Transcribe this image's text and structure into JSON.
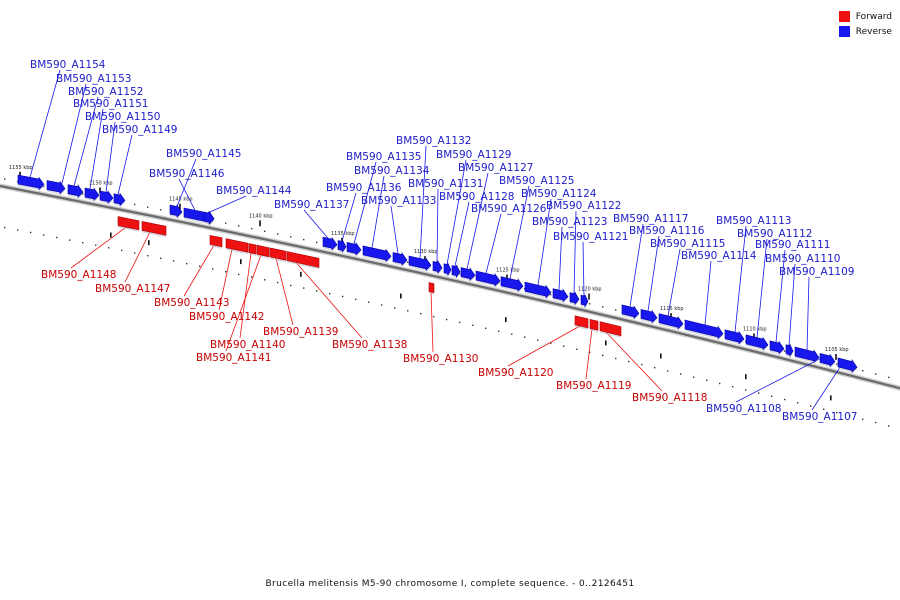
{
  "legend": [
    {
      "label": "Forward",
      "color": "#ee1111"
    },
    {
      "label": "Reverse",
      "color": "#1717ee"
    }
  ],
  "caption": "Brucella melitensis M5-90 chromosome I, complete sequence. - 0..2126451",
  "ruler": [
    "1155 kbp",
    "1150 kbp",
    "1145 kbp",
    "1140 kbp",
    "1135 kbp",
    "1130 kbp",
    "1125 kbp",
    "1120 kbp",
    "1115 kbp",
    "1110 kbp",
    "1105 kbp"
  ],
  "genes": [
    {
      "label": "BM590_A1154",
      "strand": "reverse"
    },
    {
      "label": "BM590_A1153",
      "strand": "reverse"
    },
    {
      "label": "BM590_A1152",
      "strand": "reverse"
    },
    {
      "label": "BM590_A1151",
      "strand": "reverse"
    },
    {
      "label": "BM590_A1150",
      "strand": "reverse"
    },
    {
      "label": "BM590_A1149",
      "strand": "reverse"
    },
    {
      "label": "BM590_A1145",
      "strand": "reverse"
    },
    {
      "label": "BM590_A1146",
      "strand": "reverse"
    },
    {
      "label": "BM590_A1144",
      "strand": "reverse"
    },
    {
      "label": "BM590_A1137",
      "strand": "reverse"
    },
    {
      "label": "BM590_A1136",
      "strand": "reverse"
    },
    {
      "label": "BM590_A1135",
      "strand": "reverse"
    },
    {
      "label": "BM590_A1134",
      "strand": "reverse"
    },
    {
      "label": "BM590_A1133",
      "strand": "reverse"
    },
    {
      "label": "BM590_A1132",
      "strand": "reverse"
    },
    {
      "label": "BM590_A1131",
      "strand": "reverse"
    },
    {
      "label": "BM590_A1129",
      "strand": "reverse"
    },
    {
      "label": "BM590_A1128",
      "strand": "reverse"
    },
    {
      "label": "BM590_A1127",
      "strand": "reverse"
    },
    {
      "label": "BM590_A1126",
      "strand": "reverse"
    },
    {
      "label": "BM590_A1125",
      "strand": "reverse"
    },
    {
      "label": "BM590_A1124",
      "strand": "reverse"
    },
    {
      "label": "BM590_A1123",
      "strand": "reverse"
    },
    {
      "label": "BM590_A1122",
      "strand": "reverse"
    },
    {
      "label": "BM590_A1121",
      "strand": "reverse"
    },
    {
      "label": "BM590_A1117",
      "strand": "reverse"
    },
    {
      "label": "BM590_A1116",
      "strand": "reverse"
    },
    {
      "label": "BM590_A1115",
      "strand": "reverse"
    },
    {
      "label": "BM590_A1114",
      "strand": "reverse"
    },
    {
      "label": "BM590_A1113",
      "strand": "reverse"
    },
    {
      "label": "BM590_A1112",
      "strand": "reverse"
    },
    {
      "label": "BM590_A1111",
      "strand": "reverse"
    },
    {
      "label": "BM590_A1110",
      "strand": "reverse"
    },
    {
      "label": "BM590_A1109",
      "strand": "reverse"
    },
    {
      "label": "BM590_A1108",
      "strand": "reverse"
    },
    {
      "label": "BM590_A1107",
      "strand": "reverse"
    },
    {
      "label": "BM590_A1148",
      "strand": "forward"
    },
    {
      "label": "BM590_A1147",
      "strand": "forward"
    },
    {
      "label": "BM590_A1143",
      "strand": "forward"
    },
    {
      "label": "BM590_A1142",
      "strand": "forward"
    },
    {
      "label": "BM590_A1140",
      "strand": "forward"
    },
    {
      "label": "BM590_A1141",
      "strand": "forward"
    },
    {
      "label": "BM590_A1139",
      "strand": "forward"
    },
    {
      "label": "BM590_A1138",
      "strand": "forward"
    },
    {
      "label": "BM590_A1130",
      "strand": "forward"
    },
    {
      "label": "BM590_A1120",
      "strand": "forward"
    },
    {
      "label": "BM590_A1119",
      "strand": "forward"
    },
    {
      "label": "BM590_A1118",
      "strand": "forward"
    }
  ]
}
